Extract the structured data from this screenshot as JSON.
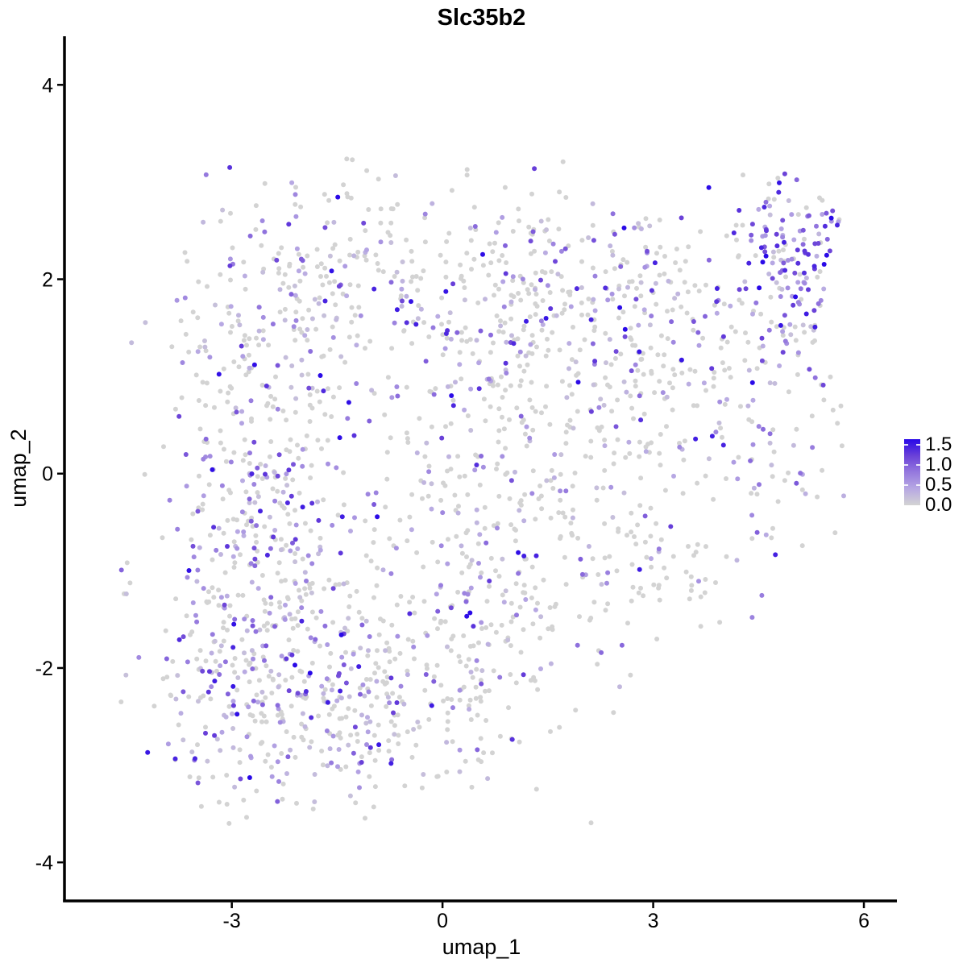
{
  "chart_data": {
    "type": "scatter",
    "title": "Slc35b2",
    "xlabel": "umap_1",
    "ylabel": "umap_2",
    "xlim": [
      -5.36,
      6.47
    ],
    "ylim": [
      -4.38,
      4.5
    ],
    "x_ticks": [
      -3,
      0,
      3,
      6
    ],
    "y_ticks": [
      -4,
      -2,
      0,
      2,
      4
    ],
    "grid": false,
    "background": "#ffffff",
    "axis_color": "#000000",
    "point_radius_px": 3,
    "n_points": 2199,
    "seed": 7,
    "legend": {
      "position": "right",
      "labels": [
        "1.5",
        "1.0",
        "0.5",
        "0.0"
      ],
      "values": [
        1.5,
        1.0,
        0.5,
        0.0
      ],
      "max_value": 1.65,
      "tick_values_on_bar": [
        1.5,
        1.0,
        0.5
      ]
    },
    "colorscale": {
      "low_label": "0.0",
      "high_label": "1.5+",
      "low": "#d3d3d3",
      "high": "#2808e8",
      "stops": [
        [
          0.0,
          "#d3d3d3"
        ],
        [
          0.25,
          "#b7a8e3"
        ],
        [
          0.5,
          "#9579de"
        ],
        [
          0.75,
          "#6a41d8"
        ],
        [
          1.0,
          "#2808e8"
        ]
      ]
    },
    "point_cloud_clip": {
      "xmin": -4.85,
      "xmax": 5.75,
      "ymin": -3.65,
      "ymax": 3.25
    },
    "clusters": [
      {
        "name": "top-left-arm",
        "cx": -1.5,
        "cy": 2.3,
        "sdx": 1.0,
        "sdy": 0.55,
        "count": 170,
        "expr_frac": 0.4
      },
      {
        "name": "left-upper",
        "cx": -2.6,
        "cy": 0.9,
        "sdx": 0.6,
        "sdy": 0.75,
        "count": 180,
        "expr_frac": 0.45
      },
      {
        "name": "left-mid",
        "cx": -2.4,
        "cy": -0.6,
        "sdx": 0.75,
        "sdy": 0.7,
        "count": 230,
        "expr_frac": 0.45
      },
      {
        "name": "bottom-left-dense",
        "cx": -2.5,
        "cy": -2.3,
        "sdx": 0.8,
        "sdy": 0.6,
        "count": 300,
        "expr_frac": 0.45
      },
      {
        "name": "bottom-center",
        "cx": -0.6,
        "cy": -2.4,
        "sdx": 0.8,
        "sdy": 0.55,
        "count": 160,
        "expr_frac": 0.35
      },
      {
        "name": "center",
        "cx": 0.2,
        "cy": -0.6,
        "sdx": 0.9,
        "sdy": 1.0,
        "count": 200,
        "expr_frac": 0.35
      },
      {
        "name": "center-upper",
        "cx": 0.6,
        "cy": 1.4,
        "sdx": 0.9,
        "sdy": 0.75,
        "count": 150,
        "expr_frac": 0.35
      },
      {
        "name": "top-center",
        "cx": 1.6,
        "cy": 2.0,
        "sdx": 0.7,
        "sdy": 0.5,
        "count": 110,
        "expr_frac": 0.35
      },
      {
        "name": "center-lower-right",
        "cx": 1.1,
        "cy": -1.6,
        "sdx": 0.8,
        "sdy": 0.6,
        "count": 90,
        "expr_frac": 0.3
      },
      {
        "name": "right-bridge",
        "cx": 2.2,
        "cy": 0.3,
        "sdx": 0.8,
        "sdy": 0.9,
        "count": 150,
        "expr_frac": 0.3,
        "ymin": -1.8
      },
      {
        "name": "right-upper",
        "cx": 3.3,
        "cy": 1.6,
        "sdx": 0.8,
        "sdy": 0.6,
        "count": 150,
        "expr_frac": 0.4
      },
      {
        "name": "right-lower",
        "cx": 3.1,
        "cy": -0.9,
        "sdx": 0.5,
        "sdy": 0.45,
        "count": 60,
        "expr_frac": 0.35,
        "ymin": -1.95
      },
      {
        "name": "far-right-arm",
        "cx": 4.6,
        "cy": 1.0,
        "sdx": 0.55,
        "sdy": 0.9,
        "count": 130,
        "expr_frac": 0.45
      },
      {
        "name": "top-right-dense",
        "cx": 4.9,
        "cy": 2.3,
        "sdx": 0.38,
        "sdy": 0.4,
        "count": 115,
        "expr_frac": 0.72,
        "expr_power": 0.75
      },
      {
        "name": "far-left-outliers",
        "cx": -4.55,
        "cy": -1.3,
        "sdx": 0.1,
        "sdy": 0.2,
        "count": 4,
        "expr_frac": 0.6
      }
    ],
    "expression": {
      "min_expressed_value": 0.18,
      "max_value": 1.65,
      "default_power": 1.8
    }
  }
}
